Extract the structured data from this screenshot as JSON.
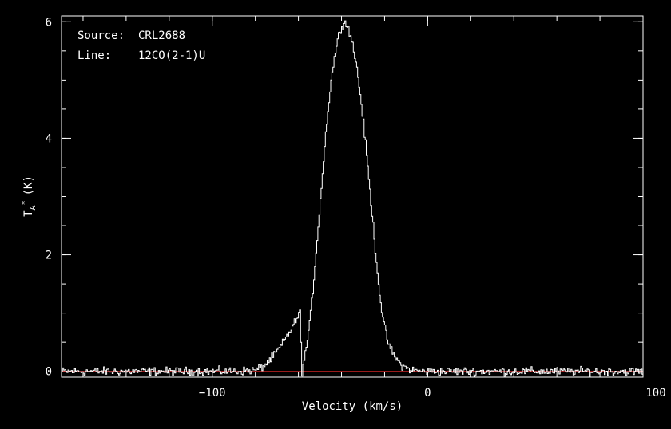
{
  "chart_data": {
    "type": "line",
    "annotations": [
      {
        "key": "Source:",
        "value": "CRL2688"
      },
      {
        "key": "Line:",
        "value": "12CO(2-1)U"
      }
    ],
    "xlabel": "Velocity (km/s)",
    "ylabel": "T",
    "ylabel_sub": "A",
    "ylabel_sup": "*",
    "ylabel_unit": "(K)",
    "xlim": [
      -170,
      100
    ],
    "ylim": [
      -0.1,
      6.1
    ],
    "xticks": [
      {
        "v": -100,
        "label": "−100"
      },
      {
        "v": 0,
        "label": "0"
      },
      {
        "v": 100,
        "label": "100"
      }
    ],
    "yticks": [
      {
        "v": 0,
        "label": "0"
      },
      {
        "v": 2,
        "label": "2"
      },
      {
        "v": 4,
        "label": "4"
      },
      {
        "v": 6,
        "label": "6"
      }
    ],
    "baseline": 0,
    "colors": {
      "spectrum": "#ffffff",
      "baseline": "#cc2222",
      "frame": "#ffffff",
      "background": "#000000"
    },
    "series": [
      {
        "x": [
          -170,
          -150,
          -130,
          -110,
          -90,
          -80,
          -76,
          -72,
          -68,
          -64,
          -61,
          -59.5,
          -58.5,
          -57,
          -55,
          -53,
          -51,
          -49,
          -47,
          -45,
          -43,
          -41,
          -39,
          -37,
          -35,
          -33,
          -31,
          -29,
          -27,
          -25,
          -23,
          -21,
          -19,
          -17,
          -15,
          -13,
          -11,
          -9,
          -7,
          -5,
          -3,
          0,
          20,
          40,
          60,
          80,
          100
        ],
        "y": [
          0,
          0,
          0,
          0,
          0,
          0.02,
          0.1,
          0.25,
          0.45,
          0.7,
          0.9,
          1.0,
          0.0,
          0.3,
          0.8,
          1.6,
          2.5,
          3.4,
          4.3,
          5.0,
          5.5,
          5.85,
          6.0,
          5.9,
          5.6,
          5.2,
          4.6,
          3.9,
          3.1,
          2.3,
          1.5,
          0.9,
          0.55,
          0.35,
          0.22,
          0.13,
          0.07,
          0.04,
          0.02,
          0.01,
          0,
          0,
          0,
          0,
          0,
          0,
          0
        ]
      }
    ]
  }
}
